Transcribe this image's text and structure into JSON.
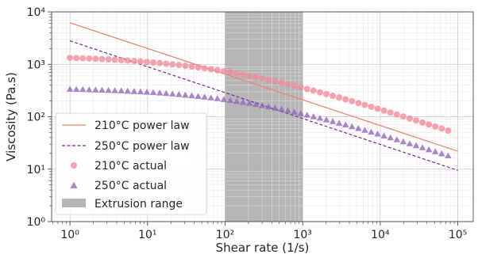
{
  "chart_data": {
    "type": "scatter",
    "xlabel": "Shear rate (1/s)",
    "ylabel": "Viscosity (Pa.s)",
    "x_scale": "log",
    "y_scale": "log",
    "xlim": [
      0.58,
      158000
    ],
    "ylim": [
      1,
      10000
    ],
    "x_tick_labels": [
      "10⁰",
      "10¹",
      "10²",
      "10³",
      "10⁴",
      "10⁵"
    ],
    "y_tick_labels": [
      "10⁰",
      "10¹",
      "10²",
      "10³",
      "10⁴"
    ],
    "grid": true,
    "legend_position": "lower-left",
    "shaded_region": {
      "label": "Extrusion range",
      "x_start": 100,
      "x_end": 1000,
      "color": "#a9a9a9"
    },
    "series": [
      {
        "name": "210°C power law",
        "style": "solid-line",
        "color": "#f08070",
        "points": [
          [
            1,
            6200
          ],
          [
            100000,
            22
          ]
        ]
      },
      {
        "name": "250°C power law",
        "style": "dashed-line",
        "color": "#7a2a8a",
        "points": [
          [
            1,
            2800
          ],
          [
            100000,
            9.5
          ]
        ]
      },
      {
        "name": "210°C actual",
        "style": "circle-markers",
        "color": "#f28b9c",
        "zero_shear_viscosity": 1470,
        "critical_shear_rate": 97,
        "power_law_index": 0.51,
        "x_min": 1,
        "x_max": 75000,
        "n_points": 60
      },
      {
        "name": "250°C actual",
        "style": "triangle-markers",
        "color": "#9467bd",
        "zero_shear_viscosity": 360,
        "critical_shear_rate": 210,
        "power_law_index": 0.5,
        "x_min": 1,
        "x_max": 75000,
        "n_points": 60
      }
    ]
  }
}
